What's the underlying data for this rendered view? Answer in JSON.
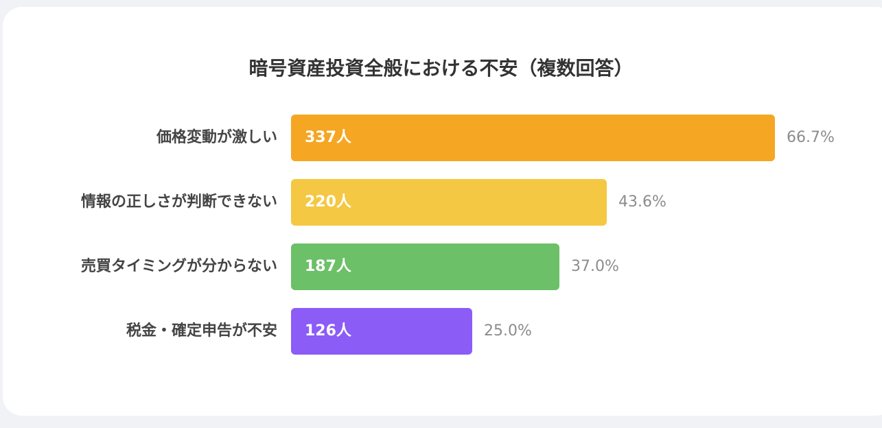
{
  "chart_data": {
    "type": "bar",
    "orientation": "horizontal",
    "title": "暗号資産投資全般における不安（複数回答）",
    "categories": [
      "価格変動が激しい",
      "情報の正しさが判断できない",
      "売買タイミングが分からない",
      "税金・確定申告が不安"
    ],
    "values": [
      337,
      220,
      187,
      126
    ],
    "value_labels": [
      "337人",
      "220人",
      "187人",
      "126人"
    ],
    "percentages": [
      66.7,
      43.6,
      37.0,
      25.0
    ],
    "percentage_labels": [
      "66.7%",
      "43.6%",
      "37.0%",
      "25.0%"
    ],
    "colors": [
      "#f5a623",
      "#f4c842",
      "#6cc068",
      "#8b5cf6"
    ],
    "legend": "none",
    "grid": false
  }
}
